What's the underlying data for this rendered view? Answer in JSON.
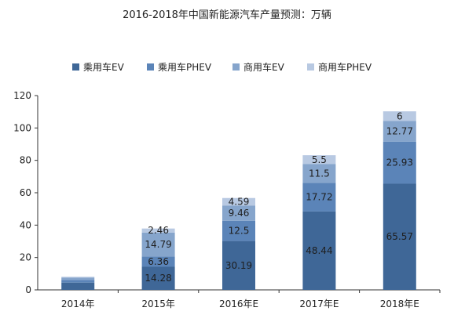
{
  "chart_data": {
    "type": "bar",
    "stacked": true,
    "title": "2016-2018年中国新能源汽车产量预测：万辆",
    "xlabel": "",
    "ylabel": "",
    "ylim": [
      0,
      120
    ],
    "yticks": [
      0,
      20,
      40,
      60,
      80,
      100,
      120
    ],
    "grid": false,
    "legend_position": "top",
    "categories": [
      "2014年",
      "2015年",
      "2016年E",
      "2017年E",
      "2018年E"
    ],
    "series": [
      {
        "name": "乘用车EV",
        "color": "#3f6797",
        "values": [
          4.5,
          14.28,
          30.19,
          48.44,
          65.57
        ],
        "labels": [
          "",
          "14.28",
          "30.19",
          "48.44",
          "65.57"
        ],
        "label_color": "#1e1e1e"
      },
      {
        "name": "乘用车PHEV",
        "color": "#5b84b8",
        "values": [
          1.7,
          6.36,
          12.5,
          17.72,
          25.93
        ],
        "labels": [
          "",
          "6.36",
          "12.5",
          "17.72",
          "25.93"
        ],
        "label_color": "#1e1e1e"
      },
      {
        "name": "商用车EV",
        "color": "#86a5cc",
        "values": [
          1.3,
          14.79,
          9.46,
          11.5,
          12.77
        ],
        "labels": [
          "",
          "14.79",
          "9.46",
          "11.5",
          "12.77"
        ],
        "label_color": "#1e1e1e"
      },
      {
        "name": "商用车PHEV",
        "color": "#b8c9e2",
        "values": [
          0.6,
          2.46,
          4.59,
          5.5,
          6
        ],
        "labels": [
          "",
          "2.46",
          "4.59",
          "5.5",
          "6"
        ],
        "label_color": "#1e1e1e"
      }
    ]
  }
}
